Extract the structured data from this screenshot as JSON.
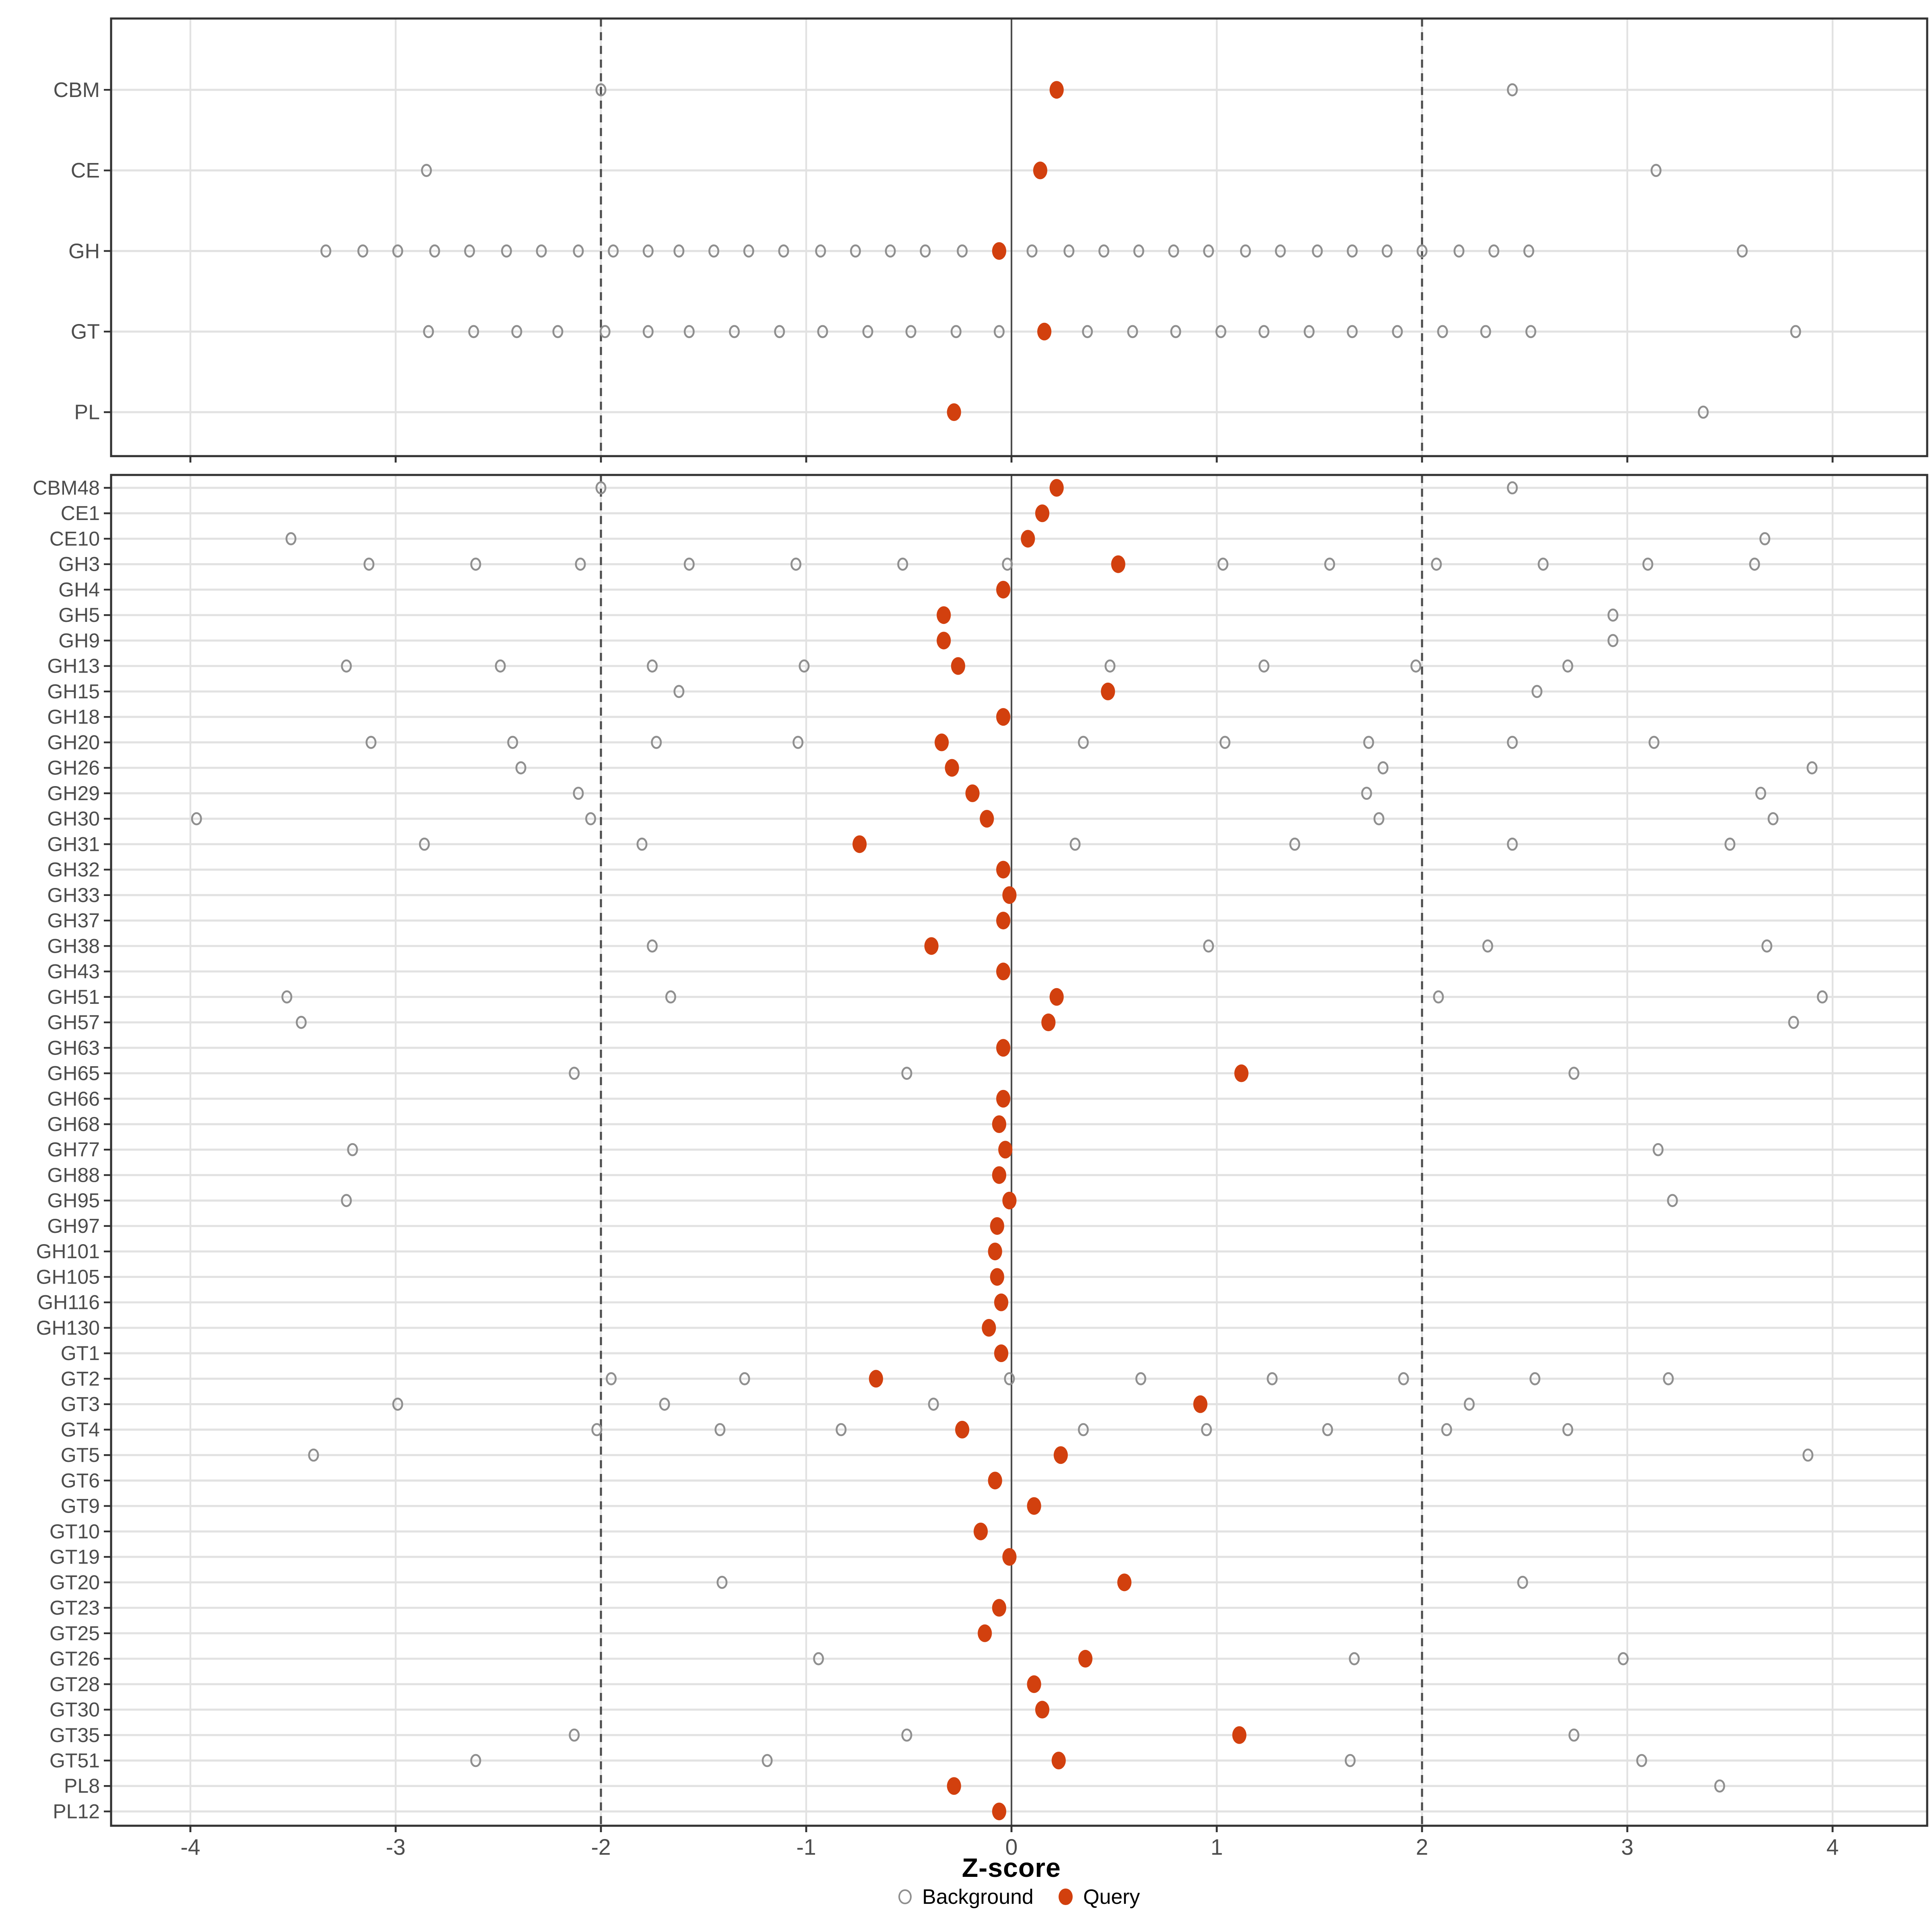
{
  "chart_data": {
    "type": "scatter",
    "title": "",
    "xlabel": "Z-score",
    "x_ticks": [
      -4,
      -3,
      -2,
      -1,
      0,
      1,
      2,
      3,
      4
    ],
    "x_range": [
      -4.39,
      4.46
    ],
    "reference_lines": {
      "solid_at": 0,
      "dashed_at": [
        -2,
        2
      ]
    },
    "grid": "on",
    "legend": {
      "background_label": "Background",
      "query_label": "Query",
      "position": "bottom-center"
    },
    "colors": {
      "query": "#D2400E",
      "background_stroke": "#8f8f8f",
      "grid": "#e2e2e2",
      "axis_text": "#4d4d4d",
      "ref_line": "#4d4d4d",
      "panel_border": "#333333",
      "tick": "#333333"
    },
    "panels": [
      {
        "name": "families",
        "categories": [
          {
            "label": "CBM",
            "query": 0.22,
            "background": [
              -2.0,
              2.44
            ]
          },
          {
            "label": "CE",
            "query": 0.14,
            "background": [
              -2.85,
              3.14
            ]
          },
          {
            "label": "GH",
            "query": -0.06,
            "background": [
              -3.34,
              -3.16,
              -2.99,
              -2.81,
              -2.64,
              -2.46,
              -2.29,
              -2.11,
              -1.94,
              -1.77,
              -1.62,
              -1.45,
              -1.28,
              -1.11,
              -0.93,
              -0.76,
              -0.59,
              -0.42,
              -0.24,
              0.1,
              0.28,
              0.45,
              0.62,
              0.79,
              0.96,
              1.14,
              1.31,
              1.49,
              1.66,
              1.83,
              2.0,
              2.18,
              2.35,
              2.52,
              3.56
            ]
          },
          {
            "label": "GT",
            "query": 0.16,
            "background": [
              -2.84,
              -2.62,
              -2.41,
              -2.21,
              -1.98,
              -1.77,
              -1.57,
              -1.35,
              -1.13,
              -0.92,
              -0.7,
              -0.49,
              -0.27,
              -0.06,
              0.37,
              0.59,
              0.8,
              1.02,
              1.23,
              1.45,
              1.66,
              1.88,
              2.1,
              2.31,
              2.53,
              3.82
            ]
          },
          {
            "label": "PL",
            "query": -0.28,
            "background": [
              3.37
            ]
          }
        ]
      },
      {
        "name": "subfamilies",
        "categories": [
          {
            "label": "CBM48",
            "query": 0.22,
            "background": [
              -2.0,
              2.44
            ]
          },
          {
            "label": "CE1",
            "query": 0.15,
            "background": []
          },
          {
            "label": "CE10",
            "query": 0.08,
            "background": [
              -3.51,
              3.67
            ]
          },
          {
            "label": "GH3",
            "query": 0.52,
            "background": [
              -3.13,
              -2.61,
              -2.1,
              -1.57,
              -1.05,
              -0.53,
              -0.02,
              1.03,
              1.55,
              2.07,
              2.59,
              3.1,
              3.62
            ]
          },
          {
            "label": "GH4",
            "query": -0.04,
            "background": []
          },
          {
            "label": "GH5",
            "query": -0.33,
            "background": [
              2.93
            ]
          },
          {
            "label": "GH9",
            "query": -0.33,
            "background": [
              2.93
            ]
          },
          {
            "label": "GH13",
            "query": -0.26,
            "background": [
              -3.24,
              -2.49,
              -1.75,
              -1.01,
              0.48,
              1.23,
              1.97,
              2.71
            ]
          },
          {
            "label": "GH15",
            "query": 0.47,
            "background": [
              -1.62,
              2.56
            ]
          },
          {
            "label": "GH18",
            "query": -0.04,
            "background": []
          },
          {
            "label": "GH20",
            "query": -0.34,
            "background": [
              -3.12,
              -2.43,
              -1.73,
              -1.04,
              0.35,
              1.04,
              1.74,
              2.44,
              3.13
            ]
          },
          {
            "label": "GH26",
            "query": -0.29,
            "background": [
              -2.39,
              1.81,
              3.9
            ]
          },
          {
            "label": "GH29",
            "query": -0.19,
            "background": [
              -2.11,
              1.73,
              3.65
            ]
          },
          {
            "label": "GH30",
            "query": -0.12,
            "background": [
              -3.97,
              -2.05,
              1.79,
              3.71
            ]
          },
          {
            "label": "GH31",
            "query": -0.74,
            "background": [
              -2.86,
              -1.8,
              0.31,
              1.38,
              2.44,
              3.5
            ]
          },
          {
            "label": "GH32",
            "query": -0.04,
            "background": []
          },
          {
            "label": "GH33",
            "query": -0.01,
            "background": []
          },
          {
            "label": "GH37",
            "query": -0.04,
            "background": []
          },
          {
            "label": "GH38",
            "query": -0.39,
            "background": [
              -1.75,
              0.96,
              2.32,
              3.68
            ]
          },
          {
            "label": "GH43",
            "query": -0.04,
            "background": []
          },
          {
            "label": "GH51",
            "query": 0.22,
            "background": [
              -3.53,
              -1.66,
              2.08,
              3.95
            ]
          },
          {
            "label": "GH57",
            "query": 0.18,
            "background": [
              -3.46,
              3.81
            ]
          },
          {
            "label": "GH63",
            "query": -0.04,
            "background": []
          },
          {
            "label": "GH65",
            "query": 1.12,
            "background": [
              -2.13,
              -0.51,
              2.74
            ]
          },
          {
            "label": "GH66",
            "query": -0.04,
            "background": []
          },
          {
            "label": "GH68",
            "query": -0.06,
            "background": []
          },
          {
            "label": "GH77",
            "query": -0.03,
            "background": [
              -3.21,
              3.15
            ]
          },
          {
            "label": "GH88",
            "query": -0.06,
            "background": []
          },
          {
            "label": "GH95",
            "query": -0.01,
            "background": [
              -3.24,
              3.22
            ]
          },
          {
            "label": "GH97",
            "query": -0.07,
            "background": []
          },
          {
            "label": "GH101",
            "query": -0.08,
            "background": []
          },
          {
            "label": "GH105",
            "query": -0.07,
            "background": []
          },
          {
            "label": "GH116",
            "query": -0.05,
            "background": []
          },
          {
            "label": "GH130",
            "query": -0.11,
            "background": []
          },
          {
            "label": "GT1",
            "query": -0.05,
            "background": []
          },
          {
            "label": "GT2",
            "query": -0.66,
            "background": [
              -1.95,
              -1.3,
              -0.01,
              0.63,
              1.27,
              1.91,
              2.55,
              3.2
            ]
          },
          {
            "label": "GT3",
            "query": 0.92,
            "background": [
              -2.99,
              -1.69,
              -0.38,
              2.23
            ]
          },
          {
            "label": "GT4",
            "query": -0.24,
            "background": [
              -2.02,
              -1.42,
              -0.83,
              0.35,
              0.95,
              1.54,
              2.12,
              2.71
            ]
          },
          {
            "label": "GT5",
            "query": 0.24,
            "background": [
              -3.4,
              3.88
            ]
          },
          {
            "label": "GT6",
            "query": -0.08,
            "background": []
          },
          {
            "label": "GT9",
            "query": 0.11,
            "background": []
          },
          {
            "label": "GT10",
            "query": -0.15,
            "background": []
          },
          {
            "label": "GT19",
            "query": -0.01,
            "background": []
          },
          {
            "label": "GT20",
            "query": 0.55,
            "background": [
              -1.41,
              2.49
            ]
          },
          {
            "label": "GT23",
            "query": -0.06,
            "background": []
          },
          {
            "label": "GT25",
            "query": -0.13,
            "background": []
          },
          {
            "label": "GT26",
            "query": 0.36,
            "background": [
              -0.94,
              1.67,
              2.98
            ]
          },
          {
            "label": "GT28",
            "query": 0.11,
            "background": []
          },
          {
            "label": "GT30",
            "query": 0.15,
            "background": []
          },
          {
            "label": "GT35",
            "query": 1.11,
            "background": [
              -2.13,
              -0.51,
              2.74
            ]
          },
          {
            "label": "GT51",
            "query": 0.23,
            "background": [
              -2.61,
              -1.19,
              1.65,
              3.07
            ]
          },
          {
            "label": "PL8",
            "query": -0.28,
            "background": [
              3.45
            ]
          },
          {
            "label": "PL12",
            "query": -0.06,
            "background": []
          }
        ]
      }
    ]
  }
}
